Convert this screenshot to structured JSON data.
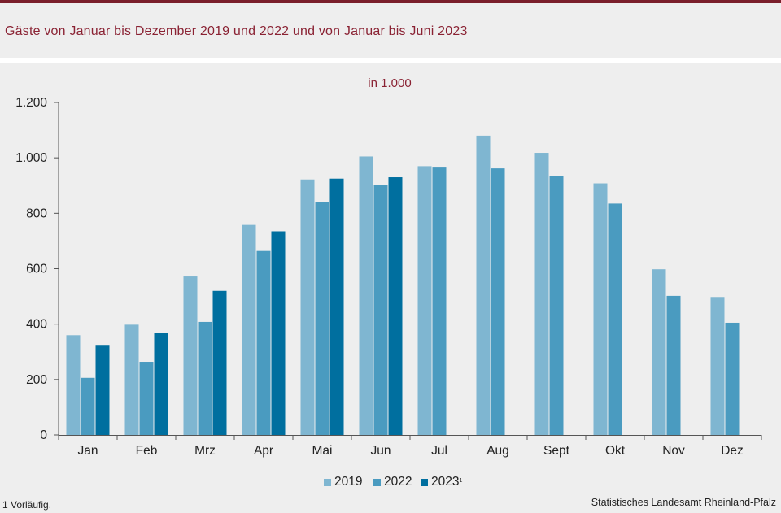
{
  "title": "Gäste von Januar bis Dezember 2019 und 2022 und von Januar bis Juni 2023",
  "footnote": "1 Vorläufig.",
  "source": "Statistisches Landesamt Rheinland-Pfalz",
  "colors": {
    "accent": "#7a1f2b",
    "s2019": "#7fb6d1",
    "s2022": "#4a9bc0",
    "s2023": "#006f9f"
  },
  "legend": [
    {
      "label": "2019",
      "sup": ""
    },
    {
      "label": "2022",
      "sup": ""
    },
    {
      "label": "2023",
      "sup": "1"
    }
  ],
  "chart_data": {
    "type": "bar",
    "unit_label": "in 1.000",
    "categories": [
      "Jan",
      "Feb",
      "Mrz",
      "Apr",
      "Mai",
      "Jun",
      "Jul",
      "Aug",
      "Sept",
      "Okt",
      "Nov",
      "Dez"
    ],
    "series": [
      {
        "name": "2019",
        "values": [
          360,
          398,
          572,
          758,
          922,
          1005,
          970,
          1080,
          1018,
          908,
          598,
          498
        ]
      },
      {
        "name": "2022",
        "values": [
          206,
          264,
          408,
          664,
          840,
          902,
          965,
          962,
          935,
          835,
          502,
          405
        ]
      },
      {
        "name": "2023",
        "values": [
          325,
          368,
          520,
          735,
          925,
          930,
          null,
          null,
          null,
          null,
          null,
          null
        ]
      }
    ],
    "ylim": [
      0,
      1200
    ],
    "yticks": [
      0,
      200,
      400,
      600,
      800,
      1000,
      1200
    ],
    "ytick_labels": [
      "0",
      "200",
      "400",
      "600",
      "800",
      "1.000",
      "1.200"
    ],
    "grid": false,
    "legend_position": "bottom"
  }
}
